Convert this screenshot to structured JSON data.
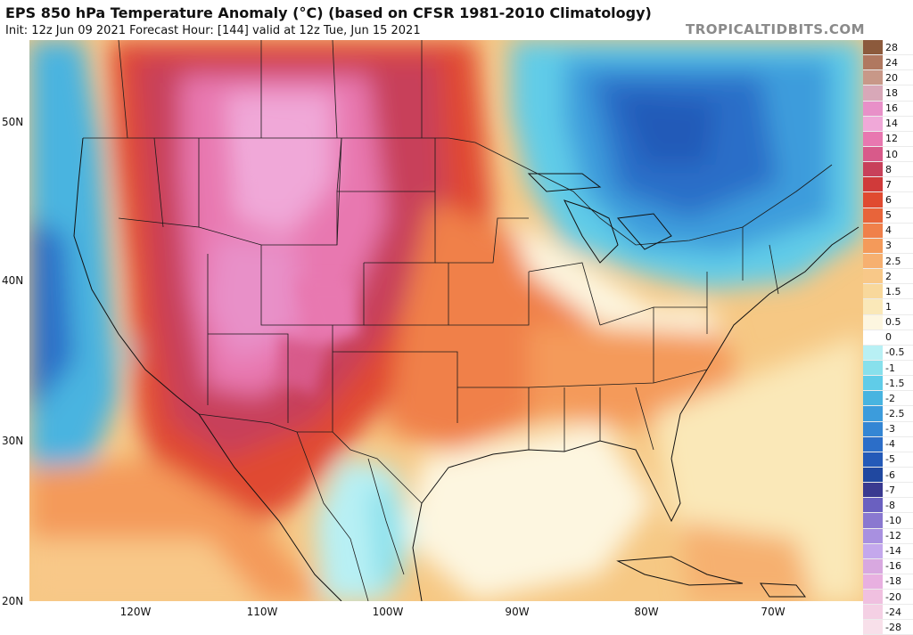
{
  "header": {
    "title": "EPS 850 hPa Temperature Anomaly (°C) (based on CFSR 1981-2010 Climatology)",
    "subtitle": "Init: 12z Jun 09 2021   Forecast Hour: [144]   valid at 12z Tue, Jun 15 2021",
    "brand": "TROPICALTIDBITS.COM"
  },
  "axes": {
    "lat_labels": [
      "50N",
      "40N",
      "30N",
      "20N"
    ],
    "lon_labels": [
      "120W",
      "110W",
      "100W",
      "90W",
      "80W",
      "70W"
    ]
  },
  "colorbar": {
    "labels": [
      "28",
      "24",
      "20",
      "18",
      "16",
      "14",
      "12",
      "10",
      "8",
      "7",
      "6",
      "5",
      "4",
      "3",
      "2.5",
      "2",
      "1.5",
      "1",
      "0.5",
      "0",
      "-0.5",
      "-1",
      "-1.5",
      "-2",
      "-2.5",
      "-3",
      "-4",
      "-5",
      "-6",
      "-7",
      "-8",
      "-10",
      "-12",
      "-14",
      "-16",
      "-18",
      "-20",
      "-24",
      "-28"
    ],
    "colors": [
      "#8c5a3c",
      "#b07860",
      "#c89888",
      "#d8a8b8",
      "#e890c8",
      "#f0a8d8",
      "#e878b0",
      "#d85a8a",
      "#c8405a",
      "#d03a3a",
      "#e04a30",
      "#e8643a",
      "#f0804a",
      "#f49a5a",
      "#f6b070",
      "#f8c888",
      "#f8d89c",
      "#fae8b8",
      "#fdf6e0",
      "#ffffff",
      "#b8f0f4",
      "#88e0ec",
      "#60cce8",
      "#48b4e0",
      "#3c9cdc",
      "#3486d4",
      "#2c6ec8",
      "#245ab8",
      "#2048a0",
      "#3a3a90",
      "#6a60c0",
      "#8a78d0",
      "#a890e0",
      "#c4a8ec",
      "#d8a8e0",
      "#e8b0e0",
      "#f0c0e0",
      "#f4d0e4",
      "#f8e0ea"
    ]
  },
  "map": {
    "region": "Contiguous United States, northern Mexico, southern Canada",
    "field": "850 hPa temperature anomaly"
  }
}
